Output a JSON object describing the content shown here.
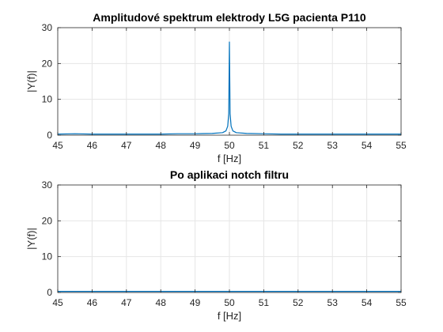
{
  "figure": {
    "background": "#ffffff",
    "axes_color": "#262626",
    "grid_color": "#e6e6e6",
    "line_color": "#0072bd"
  },
  "chart_data": [
    {
      "type": "line",
      "title": "Amplitudové spektrum elektrody L5G pacienta P110",
      "xlabel": "f [Hz]",
      "ylabel": "|Y(f)|",
      "xlim": [
        45,
        55
      ],
      "ylim": [
        0,
        30
      ],
      "xticks": [
        45,
        46,
        47,
        48,
        49,
        50,
        51,
        52,
        53,
        54,
        55
      ],
      "yticks": [
        0,
        10,
        20,
        30
      ],
      "xtick_labels": [
        "45",
        "46",
        "47",
        "48",
        "49",
        "50",
        "51",
        "52",
        "53",
        "54",
        "55"
      ],
      "ytick_labels": [
        "0",
        "10",
        "20",
        "30"
      ],
      "grid": true,
      "series": [
        {
          "x": [
            45,
            45.5,
            46,
            46.5,
            47,
            47.5,
            48,
            48.5,
            49,
            49.5,
            49.8,
            49.9,
            49.95,
            49.98,
            50,
            50.02,
            50.05,
            50.1,
            50.2,
            50.5,
            51,
            51.5,
            52,
            52.5,
            53,
            53.5,
            54,
            54.5,
            55
          ],
          "y": [
            0.3,
            0.4,
            0.3,
            0.3,
            0.3,
            0.3,
            0.3,
            0.4,
            0.4,
            0.5,
            0.7,
            1.2,
            2.5,
            6,
            26,
            6,
            2.5,
            1.2,
            0.7,
            0.5,
            0.4,
            0.3,
            0.3,
            0.3,
            0.3,
            0.3,
            0.3,
            0.3,
            0.3
          ]
        }
      ]
    },
    {
      "type": "line",
      "title": "Po aplikaci notch filtru",
      "xlabel": "f [Hz]",
      "ylabel": "|Y(f)|",
      "xlim": [
        45,
        55
      ],
      "ylim": [
        0,
        30
      ],
      "xticks": [
        45,
        46,
        47,
        48,
        49,
        50,
        51,
        52,
        53,
        54,
        55
      ],
      "yticks": [
        0,
        10,
        20,
        30
      ],
      "xtick_labels": [
        "45",
        "46",
        "47",
        "48",
        "49",
        "50",
        "51",
        "52",
        "53",
        "54",
        "55"
      ],
      "ytick_labels": [
        "0",
        "10",
        "20",
        "30"
      ],
      "grid": true,
      "series": [
        {
          "x": [
            45,
            45.5,
            46,
            46.5,
            47,
            47.5,
            48,
            48.5,
            49,
            49.5,
            50,
            50.5,
            51,
            51.5,
            52,
            52.5,
            53,
            53.5,
            54,
            54.5,
            55
          ],
          "y": [
            0.3,
            0.3,
            0.3,
            0.3,
            0.3,
            0.3,
            0.3,
            0.3,
            0.3,
            0.3,
            0.3,
            0.3,
            0.3,
            0.3,
            0.3,
            0.3,
            0.3,
            0.3,
            0.3,
            0.3,
            0.3
          ]
        }
      ]
    }
  ]
}
